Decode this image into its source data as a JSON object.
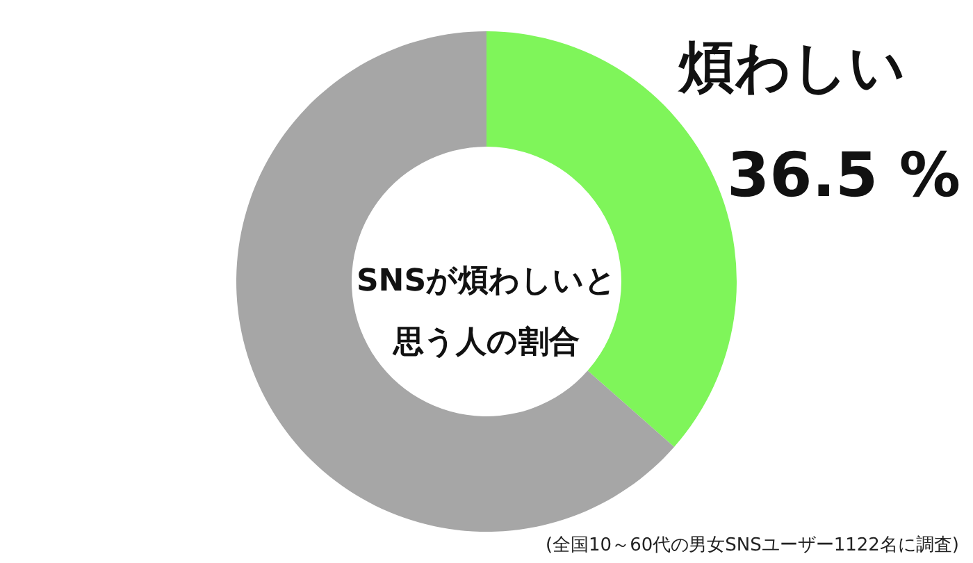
{
  "chart_data": {
    "type": "donut",
    "title": "SNSが煩わしいと思う人の割合",
    "categories": [
      "煩わしい",
      null
    ],
    "values": [
      36.5,
      63.5
    ],
    "colors": [
      "#7ff55a",
      "#a6a6a6"
    ],
    "value_labels": [
      "36.5 %",
      null
    ],
    "annotations": [
      "(全国10～60代の男女SNSユーザー1122名に調査)"
    ]
  }
}
